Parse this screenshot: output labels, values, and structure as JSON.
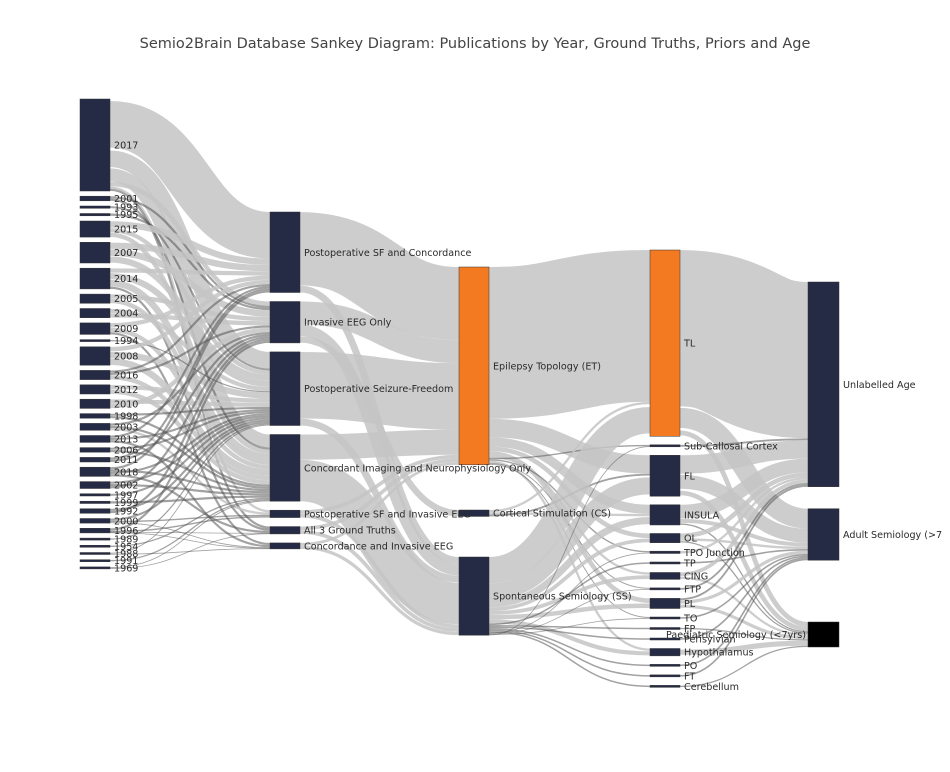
{
  "title": "Semio2Brain Database Sankey Diagram: Publications by Year, Ground Truths, Priors and Age",
  "colors": {
    "navy": "#252a45",
    "orange": "#f47a22",
    "black": "#000000",
    "link": "#c4c4c4",
    "thin_link": "#555555"
  },
  "columns": [
    {
      "name": "years",
      "nodes": [
        {
          "id": "y2017",
          "label": "2017",
          "value": 20
        },
        {
          "id": "y2001",
          "label": "2001",
          "value": 1
        },
        {
          "id": "y1993",
          "label": "1993",
          "value": 0.5
        },
        {
          "id": "y1995",
          "label": "1995",
          "value": 0.5
        },
        {
          "id": "y2015",
          "label": "2015",
          "value": 3.5
        },
        {
          "id": "y2007",
          "label": "2007",
          "value": 4.5
        },
        {
          "id": "y2014",
          "label": "2014",
          "value": 4.5
        },
        {
          "id": "y2005",
          "label": "2005",
          "value": 2
        },
        {
          "id": "y2004",
          "label": "2004",
          "value": 2
        },
        {
          "id": "y2009",
          "label": "2009",
          "value": 2.5
        },
        {
          "id": "y1994",
          "label": "1994",
          "value": 0.3
        },
        {
          "id": "y2008",
          "label": "2008",
          "value": 4
        },
        {
          "id": "y2016",
          "label": "2016",
          "value": 2
        },
        {
          "id": "y2012",
          "label": "2012",
          "value": 2
        },
        {
          "id": "y2010",
          "label": "2010",
          "value": 2
        },
        {
          "id": "y1998",
          "label": "1998",
          "value": 1
        },
        {
          "id": "y2003",
          "label": "2003",
          "value": 1.5
        },
        {
          "id": "y2013",
          "label": "2013",
          "value": 1.5
        },
        {
          "id": "y2006",
          "label": "2006",
          "value": 1
        },
        {
          "id": "y2011",
          "label": "2011",
          "value": 1
        },
        {
          "id": "y2018",
          "label": "2018",
          "value": 2
        },
        {
          "id": "y2002",
          "label": "2002",
          "value": 1.5
        },
        {
          "id": "y1997",
          "label": "1997",
          "value": 0.5
        },
        {
          "id": "y1999",
          "label": "1999",
          "value": 0.5
        },
        {
          "id": "y1992",
          "label": "1992",
          "value": 1
        },
        {
          "id": "y2000",
          "label": "2000",
          "value": 1
        },
        {
          "id": "y1996",
          "label": "1996",
          "value": 1
        },
        {
          "id": "y1989",
          "label": "1989",
          "value": 0.3
        },
        {
          "id": "y1954",
          "label": "1954",
          "value": 0.3
        },
        {
          "id": "y1988",
          "label": "1988",
          "value": 0.3
        },
        {
          "id": "y1991",
          "label": "1991",
          "value": 0.3
        },
        {
          "id": "y1969",
          "label": "1969",
          "value": 0.3
        }
      ]
    },
    {
      "name": "ground_truths",
      "nodes": [
        {
          "id": "gtPSC",
          "label": "Postoperative SF and Concordance",
          "value": 17.5
        },
        {
          "id": "gtIEO",
          "label": "Invasive EEG Only",
          "value": 9
        },
        {
          "id": "gtPSF",
          "label": "Postoperative Seizure-Freedom",
          "value": 16
        },
        {
          "id": "gtCIN",
          "label": "Concordant Imaging and Neurophysiology Only",
          "value": 14.5
        },
        {
          "id": "gtPSI",
          "label": "Postoperative SF and Invasive EEG",
          "value": 1.6
        },
        {
          "id": "gtA3",
          "label": "All 3 Ground Truths",
          "value": 1.6
        },
        {
          "id": "gtCIE",
          "label": "Concordance and Invasive EEG",
          "value": 1.3
        }
      ]
    },
    {
      "name": "priors",
      "nodes": [
        {
          "id": "pET",
          "label": "Epilepsy Topology (ET)",
          "value": 43,
          "color": "orange"
        },
        {
          "id": "pCS",
          "label": "Cortical Stimulation (CS)",
          "value": 1.4
        },
        {
          "id": "pSS",
          "label": "Spontaneous Semiology (SS)",
          "value": 17
        }
      ]
    },
    {
      "name": "regions",
      "nodes": [
        {
          "id": "rTL",
          "label": "TL",
          "value": 40.5,
          "color": "orange"
        },
        {
          "id": "rSCC",
          "label": "Sub-Callosal Cortex",
          "value": 0.4
        },
        {
          "id": "rFL",
          "label": "FL",
          "value": 8.9
        },
        {
          "id": "rINS",
          "label": "INSULA",
          "value": 4.4
        },
        {
          "id": "rOL",
          "label": "OL",
          "value": 2
        },
        {
          "id": "rTPO",
          "label": "TPO Junction",
          "value": 0.5
        },
        {
          "id": "rTP",
          "label": "TP",
          "value": 0.4
        },
        {
          "id": "rCING",
          "label": "CING",
          "value": 1.5
        },
        {
          "id": "rFTP",
          "label": "FTP",
          "value": 0.4
        },
        {
          "id": "rPL",
          "label": "PL",
          "value": 2.2
        },
        {
          "id": "rTO",
          "label": "TO",
          "value": 0.4
        },
        {
          "id": "rFP",
          "label": "FP",
          "value": 0.4
        },
        {
          "id": "rPERI",
          "label": "Perisylvian",
          "value": 0.4
        },
        {
          "id": "rHYPO",
          "label": "Hypothalamus",
          "value": 1.6
        },
        {
          "id": "rPO",
          "label": "PO",
          "value": 0.4
        },
        {
          "id": "rFT",
          "label": "FT",
          "value": 0.4
        },
        {
          "id": "rCER",
          "label": "Cerebellum",
          "value": 0.4
        }
      ]
    },
    {
      "name": "age",
      "nodes": [
        {
          "id": "aUA",
          "label": "Unlabelled Age",
          "value": 44.5
        },
        {
          "id": "aAS",
          "label": "Adult Semiology (>7",
          "value": 11.2
        },
        {
          "id": "aPS",
          "label": "Paediatric Semiology (<7yrs)",
          "value": 5.4,
          "color": "black"
        }
      ]
    }
  ],
  "links": [
    [
      "y2017",
      "gtPSC",
      11
    ],
    [
      "y2017",
      "gtPSF",
      4
    ],
    [
      "y2017",
      "gtCIN",
      3
    ],
    [
      "y2017",
      "gtIEO",
      1
    ],
    [
      "y2017",
      "gtPSI",
      0.5
    ],
    [
      "y2017",
      "gtA3",
      0.5
    ],
    [
      "y2001",
      "gtIEO",
      0.5
    ],
    [
      "y2001",
      "gtCIN",
      0.5
    ],
    [
      "y1993",
      "gtPSF",
      0.5
    ],
    [
      "y1995",
      "gtIEO",
      0.5
    ],
    [
      "y2015",
      "gtPSC",
      1.5
    ],
    [
      "y2015",
      "gtPSF",
      1
    ],
    [
      "y2015",
      "gtCIN",
      1
    ],
    [
      "y2007",
      "gtPSC",
      1.5
    ],
    [
      "y2007",
      "gtIEO",
      1.5
    ],
    [
      "y2007",
      "gtPSF",
      1.5
    ],
    [
      "y2014",
      "gtPSC",
      1
    ],
    [
      "y2014",
      "gtPSF",
      1.5
    ],
    [
      "y2014",
      "gtCIN",
      1.5
    ],
    [
      "y2014",
      "gtA3",
      0.5
    ],
    [
      "y2005",
      "gtIEO",
      1
    ],
    [
      "y2005",
      "gtCIN",
      1
    ],
    [
      "y2004",
      "gtPSF",
      1
    ],
    [
      "y2004",
      "gtIEO",
      1
    ],
    [
      "y2009",
      "gtPSC",
      1
    ],
    [
      "y2009",
      "gtCIN",
      1
    ],
    [
      "y2009",
      "gtCIE",
      0.5
    ],
    [
      "y1994",
      "gtPSF",
      0.3
    ],
    [
      "y2008",
      "gtPSC",
      1
    ],
    [
      "y2008",
      "gtPSF",
      1.5
    ],
    [
      "y2008",
      "gtCIN",
      1.5
    ],
    [
      "y2016",
      "gtPSC",
      0.5
    ],
    [
      "y2016",
      "gtIEO",
      0.5
    ],
    [
      "y2016",
      "gtCIN",
      1
    ],
    [
      "y2012",
      "gtPSF",
      1
    ],
    [
      "y2012",
      "gtCIN",
      1
    ],
    [
      "y2010",
      "gtPSF",
      1
    ],
    [
      "y2010",
      "gtIEO",
      1
    ],
    [
      "y1998",
      "gtPSF",
      0.5
    ],
    [
      "y1998",
      "gtCIN",
      0.5
    ],
    [
      "y2003",
      "gtIEO",
      0.5
    ],
    [
      "y2003",
      "gtCIN",
      0.5
    ],
    [
      "y2003",
      "gtPSI",
      0.5
    ],
    [
      "y2013",
      "gtPSC",
      0.5
    ],
    [
      "y2013",
      "gtPSF",
      0.5
    ],
    [
      "y2013",
      "gtCIE",
      0.5
    ],
    [
      "y2006",
      "gtPSF",
      0.5
    ],
    [
      "y2006",
      "gtCIN",
      0.5
    ],
    [
      "y2011",
      "gtPSC",
      0.5
    ],
    [
      "y2011",
      "gtIEO",
      0.5
    ],
    [
      "y2018",
      "gtPSC",
      0.5
    ],
    [
      "y2018",
      "gtCIN",
      0.5
    ],
    [
      "y2018",
      "gtPSF",
      0.5
    ],
    [
      "y2018",
      "gtA3",
      0.5
    ],
    [
      "y2002",
      "gtPSF",
      0.5
    ],
    [
      "y2002",
      "gtCIN",
      0.5
    ],
    [
      "y2002",
      "gtIEO",
      0.5
    ],
    [
      "y1997",
      "gtPSF",
      0.5
    ],
    [
      "y1999",
      "gtCIN",
      0.5
    ],
    [
      "y1992",
      "gtPSF",
      0.5
    ],
    [
      "y1992",
      "gtIEO",
      0.5
    ],
    [
      "y2000",
      "gtPSF",
      0.5
    ],
    [
      "y2000",
      "gtPSI",
      0.3
    ],
    [
      "y2000",
      "gtCIE",
      0.2
    ],
    [
      "y1996",
      "gtIEO",
      0.5
    ],
    [
      "y1996",
      "gtPSI",
      0.3
    ],
    [
      "y1996",
      "gtA3",
      0.1
    ],
    [
      "y1996",
      "gtCIE",
      0.1
    ],
    [
      "y1989",
      "gtPSF",
      0.3
    ],
    [
      "y1954",
      "gtCIN",
      0.3
    ],
    [
      "y1988",
      "gtPSF",
      0.2
    ],
    [
      "y1988",
      "gtCIE",
      0.1
    ],
    [
      "y1991",
      "gtCIN",
      0.3
    ],
    [
      "y1969",
      "gtCIN",
      0.2
    ],
    [
      "y1969",
      "gtA3",
      0.1
    ],
    [
      "gtPSC",
      "pET",
      16
    ],
    [
      "gtPSC",
      "pSS",
      1.5
    ],
    [
      "gtIEO",
      "pET",
      5
    ],
    [
      "gtIEO",
      "pSS",
      2.5
    ],
    [
      "gtIEO",
      "pCS",
      1.5
    ],
    [
      "gtPSF",
      "pET",
      14.5
    ],
    [
      "gtPSF",
      "pSS",
      1.5
    ],
    [
      "gtCIN",
      "pET",
      5.5
    ],
    [
      "gtCIN",
      "pSS",
      9
    ],
    [
      "gtPSI",
      "pET",
      0.8
    ],
    [
      "gtPSI",
      "pSS",
      0.8
    ],
    [
      "gtA3",
      "pET",
      0.8
    ],
    [
      "gtA3",
      "pSS",
      0.8
    ],
    [
      "gtCIE",
      "pET",
      0.6
    ],
    [
      "gtCIE",
      "pSS",
      0.7
    ],
    [
      "pET",
      "rTL",
      33
    ],
    [
      "pET",
      "rFL",
      4
    ],
    [
      "pET",
      "rINS",
      2
    ],
    [
      "pET",
      "rOL",
      1
    ],
    [
      "pET",
      "rPL",
      1
    ],
    [
      "pET",
      "rCING",
      0.5
    ],
    [
      "pET",
      "rSCC",
      0.3
    ],
    [
      "pET",
      "rTPO",
      0.3
    ],
    [
      "pET",
      "rHYPO",
      0.5
    ],
    [
      "pET",
      "rFTP",
      0.2
    ],
    [
      "pET",
      "rTO",
      0.2
    ],
    [
      "pCS",
      "rTL",
      0.5
    ],
    [
      "pCS",
      "rINS",
      0.5
    ],
    [
      "pCS",
      "rFL",
      0.4
    ],
    [
      "pSS",
      "rTL",
      7
    ],
    [
      "pSS",
      "rFL",
      4.5
    ],
    [
      "pSS",
      "rINS",
      1.9
    ],
    [
      "pSS",
      "rOL",
      1
    ],
    [
      "pSS",
      "rCING",
      1
    ],
    [
      "pSS",
      "rPL",
      1.2
    ],
    [
      "pSS",
      "rHYPO",
      1.1
    ],
    [
      "pSS",
      "rTP",
      0.4
    ],
    [
      "pSS",
      "rFP",
      0.4
    ],
    [
      "pSS",
      "rPERI",
      0.4
    ],
    [
      "pSS",
      "rPO",
      0.4
    ],
    [
      "pSS",
      "rFT",
      0.4
    ],
    [
      "pSS",
      "rCER",
      0.4
    ],
    [
      "pSS",
      "rTPO",
      0.2
    ],
    [
      "pSS",
      "rFTP",
      0.2
    ],
    [
      "pSS",
      "rTO",
      0.2
    ],
    [
      "pSS",
      "rSCC",
      0.1
    ],
    [
      "rTL",
      "aUA",
      34
    ],
    [
      "rTL",
      "aAS",
      5
    ],
    [
      "rTL",
      "aPS",
      1.5
    ],
    [
      "rSCC",
      "aUA",
      0.4
    ],
    [
      "rFL",
      "aUA",
      4
    ],
    [
      "rFL",
      "aAS",
      3.5
    ],
    [
      "rFL",
      "aPS",
      1.4
    ],
    [
      "rINS",
      "aUA",
      3
    ],
    [
      "rINS",
      "aAS",
      1
    ],
    [
      "rINS",
      "aPS",
      0.4
    ],
    [
      "rOL",
      "aUA",
      1
    ],
    [
      "rOL",
      "aAS",
      0.6
    ],
    [
      "rOL",
      "aPS",
      0.4
    ],
    [
      "rTPO",
      "aUA",
      0.5
    ],
    [
      "rTP",
      "aAS",
      0.4
    ],
    [
      "rCING",
      "aUA",
      0.8
    ],
    [
      "rCING",
      "aPS",
      0.7
    ],
    [
      "rFTP",
      "aUA",
      0.4
    ],
    [
      "rPL",
      "aUA",
      0.4
    ],
    [
      "rPL",
      "aAS",
      0.8
    ],
    [
      "rPL",
      "aPS",
      1
    ],
    [
      "rTO",
      "aAS",
      0.4
    ],
    [
      "rFP",
      "aPS",
      0.4
    ],
    [
      "rPERI",
      "aAS",
      0.4
    ],
    [
      "rHYPO",
      "aPS",
      1.6
    ],
    [
      "rPO",
      "aAS",
      0.4
    ],
    [
      "rFT",
      "aAS",
      0.4
    ],
    [
      "rCER",
      "aPS",
      0.4
    ]
  ]
}
